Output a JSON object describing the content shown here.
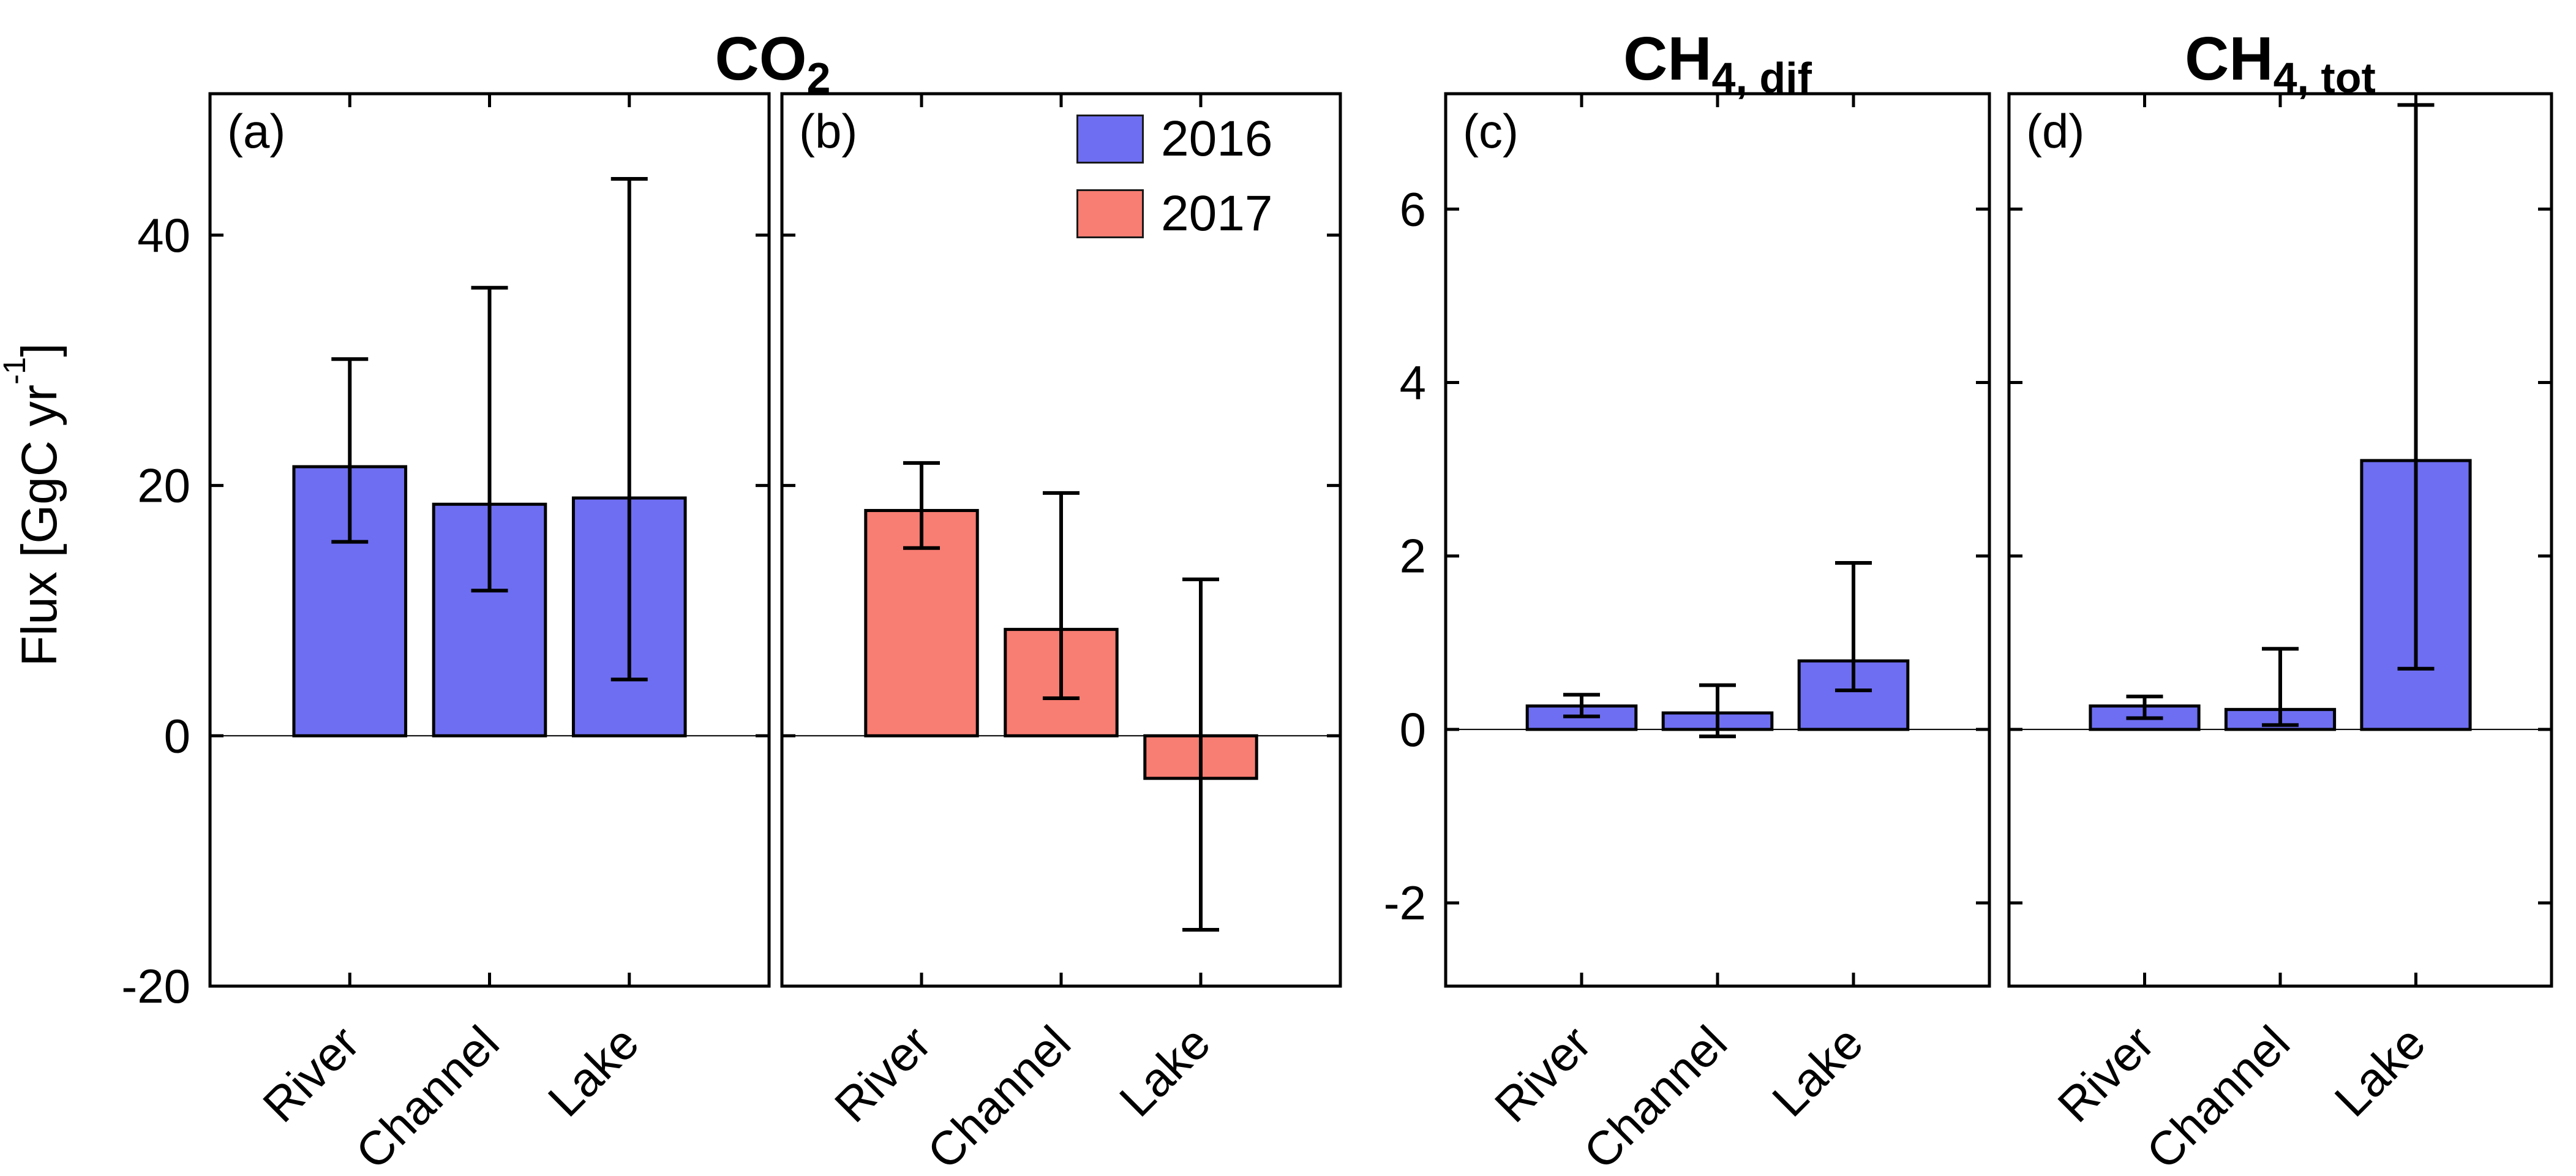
{
  "figure": {
    "titles": [
      {
        "main": "CO",
        "sub": "2"
      },
      {
        "main": "CH",
        "sub": "4, dif"
      },
      {
        "main": "CH",
        "sub": "4, tot"
      }
    ],
    "ylabel": {
      "pre": "Flux [GgC yr",
      "sup": "-1",
      "post": "]"
    }
  },
  "legend": {
    "items": [
      {
        "label": "2016",
        "color": "#6e6ef2"
      },
      {
        "label": "2017",
        "color": "#f87d72"
      }
    ]
  },
  "chart_data": [
    {
      "type": "bar",
      "panel_label": "(a)",
      "title": "CO2",
      "series": "2016",
      "categories": [
        "River",
        "Channel",
        "Lake"
      ],
      "values": [
        21.5,
        18.5,
        19.0
      ],
      "err_low": [
        15.5,
        11.6,
        4.5
      ],
      "err_high": [
        30.1,
        35.8,
        44.5
      ],
      "bar_color": "#6e6ef2",
      "ylim": [
        -20,
        51.3
      ],
      "yticks": [
        -20,
        0,
        20,
        40
      ],
      "show_ytick_labels": true,
      "grid": false
    },
    {
      "type": "bar",
      "panel_label": "(b)",
      "title": "CO2",
      "series": "2017",
      "categories": [
        "River",
        "Channel",
        "Lake"
      ],
      "values": [
        18.0,
        8.5,
        -3.4
      ],
      "err_low": [
        15.0,
        3.0,
        -15.5
      ],
      "err_high": [
        21.8,
        19.4,
        12.5
      ],
      "bar_color": "#f87d72",
      "ylim": [
        -20,
        51.3
      ],
      "yticks": [
        -20,
        0,
        20,
        40
      ],
      "show_ytick_labels": false,
      "grid": false
    },
    {
      "type": "bar",
      "panel_label": "(c)",
      "title": "CH4, dif",
      "series": "2016",
      "categories": [
        "River",
        "Channel",
        "Lake"
      ],
      "values": [
        0.27,
        0.19,
        0.79
      ],
      "err_low": [
        0.15,
        -0.08,
        0.45
      ],
      "err_high": [
        0.4,
        0.51,
        1.92
      ],
      "bar_color": "#6e6ef2",
      "ylim": [
        -2.96,
        7.33
      ],
      "yticks": [
        -2,
        0,
        2,
        4,
        6
      ],
      "show_ytick_labels": true,
      "grid": false
    },
    {
      "type": "bar",
      "panel_label": "(d)",
      "title": "CH4, tot",
      "series": "2016",
      "categories": [
        "River",
        "Channel",
        "Lake"
      ],
      "values": [
        0.27,
        0.23,
        3.1
      ],
      "err_low": [
        0.13,
        0.05,
        0.7
      ],
      "err_high": [
        0.38,
        0.93,
        7.2
      ],
      "bar_color": "#6e6ef2",
      "ylim": [
        -2.96,
        7.33
      ],
      "yticks": [
        -2,
        0,
        2,
        4,
        6
      ],
      "show_ytick_labels": false,
      "grid": false
    }
  ]
}
